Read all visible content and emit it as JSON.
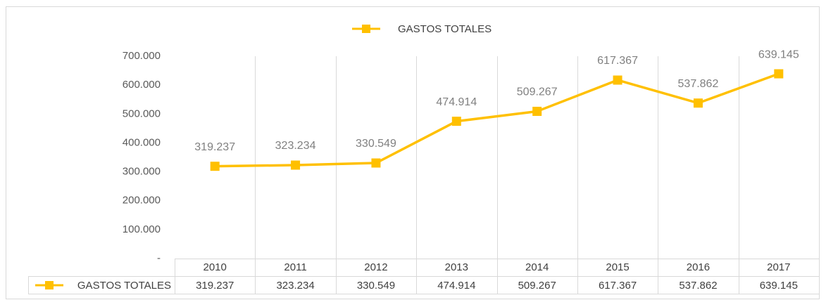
{
  "chart_data": {
    "type": "line",
    "categories": [
      "2010",
      "2011",
      "2012",
      "2013",
      "2014",
      "2015",
      "2016",
      "2017"
    ],
    "series": [
      {
        "name": "GASTOS TOTALES",
        "color": "#ffc000",
        "values": [
          319237,
          323234,
          330549,
          474914,
          509267,
          617367,
          537862,
          639145
        ],
        "value_labels": [
          "319.237",
          "323.234",
          "330.549",
          "474.914",
          "509.267",
          "617.367",
          "537.862",
          "639.145"
        ]
      }
    ],
    "ylim": [
      0,
      700000
    ],
    "yticks": [
      {
        "value": 0,
        "label": "-"
      },
      {
        "value": 100000,
        "label": "100.000"
      },
      {
        "value": 200000,
        "label": "200.000"
      },
      {
        "value": 300000,
        "label": "300.000"
      },
      {
        "value": 400000,
        "label": "400.000"
      },
      {
        "value": 500000,
        "label": "500.000"
      },
      {
        "value": 600000,
        "label": "600.000"
      },
      {
        "value": 700000,
        "label": "700.000"
      }
    ],
    "grid": false,
    "legend": "top"
  }
}
